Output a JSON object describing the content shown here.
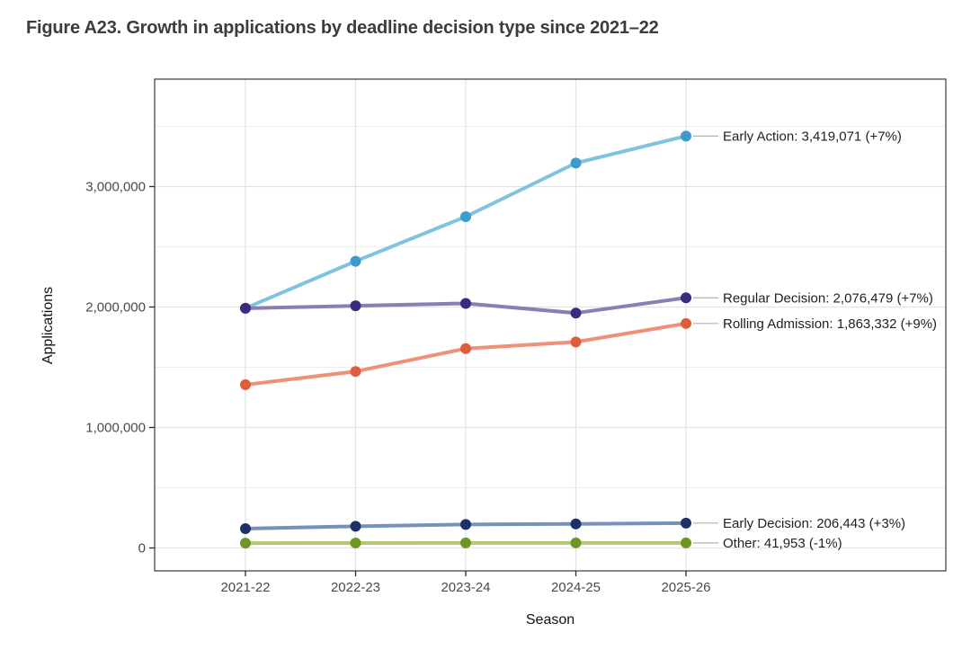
{
  "figure": {
    "title": "Figure A23. Growth in applications by deadline decision type since 2021–22"
  },
  "chart_data": {
    "type": "line",
    "title": "Figure A23. Growth in applications by deadline decision type since 2021–22",
    "xlabel": "Season",
    "ylabel": "Applications",
    "categories": [
      "2021-22",
      "2022-23",
      "2023-24",
      "2024-25",
      "2025-26"
    ],
    "series": [
      {
        "name": "Early Action",
        "values": [
          1990000,
          2380000,
          2750000,
          3195000,
          3419071
        ],
        "final_value": 3419071,
        "pct_change": "+7%",
        "end_label": "Early Action: 3,419,071 (+7%)",
        "line_color": "#7fc3e1",
        "point_color": "#3d9ccb"
      },
      {
        "name": "Regular Decision",
        "values": [
          1990000,
          2010000,
          2030000,
          1950000,
          2076479
        ],
        "final_value": 2076479,
        "pct_change": "+7%",
        "end_label": "Regular Decision: 2,076,479 (+7%)",
        "line_color": "#8b7eb2",
        "point_color": "#3b2a7e"
      },
      {
        "name": "Rolling Admission",
        "values": [
          1355000,
          1465000,
          1655000,
          1710000,
          1863332
        ],
        "final_value": 1863332,
        "pct_change": "+9%",
        "end_label": "Rolling Admission: 1,863,332 (+9%)",
        "line_color": "#ef9078",
        "point_color": "#de5e3c"
      },
      {
        "name": "Early Decision",
        "values": [
          160000,
          180000,
          195000,
          200000,
          206443
        ],
        "final_value": 206443,
        "pct_change": "+3%",
        "end_label": "Early Decision: 206,443 (+3%)",
        "line_color": "#7891b9",
        "point_color": "#1c3168"
      },
      {
        "name": "Other",
        "values": [
          40500,
          41500,
          42000,
          42400,
          41953
        ],
        "final_value": 41953,
        "pct_change": "-1%",
        "end_label": "Other: 41,953 (-1%)",
        "line_color": "#b4c972",
        "point_color": "#6e9626"
      }
    ],
    "y_ticks": [
      {
        "value": 0,
        "label": "0"
      },
      {
        "value": 1000000,
        "label": "1,000,000"
      },
      {
        "value": 2000000,
        "label": "2,000,000"
      },
      {
        "value": 3000000,
        "label": "3,000,000"
      }
    ],
    "y_minor_ticks": [
      500000,
      1500000,
      2500000,
      3500000
    ],
    "ylim": [
      -190000,
      3890000
    ],
    "grid": true,
    "legend_position": "end-of-line-labels"
  },
  "style_colors": {
    "grid_major": "#e3e3e3",
    "grid_minor": "#ededed",
    "panel_border": "#474747",
    "tick_mark": "#2b2b2b",
    "tick_label": "#4a4a4a",
    "annotation_text": "#1f1f1f",
    "leader_line": "#b3b3b3",
    "background": "#ffffff"
  }
}
